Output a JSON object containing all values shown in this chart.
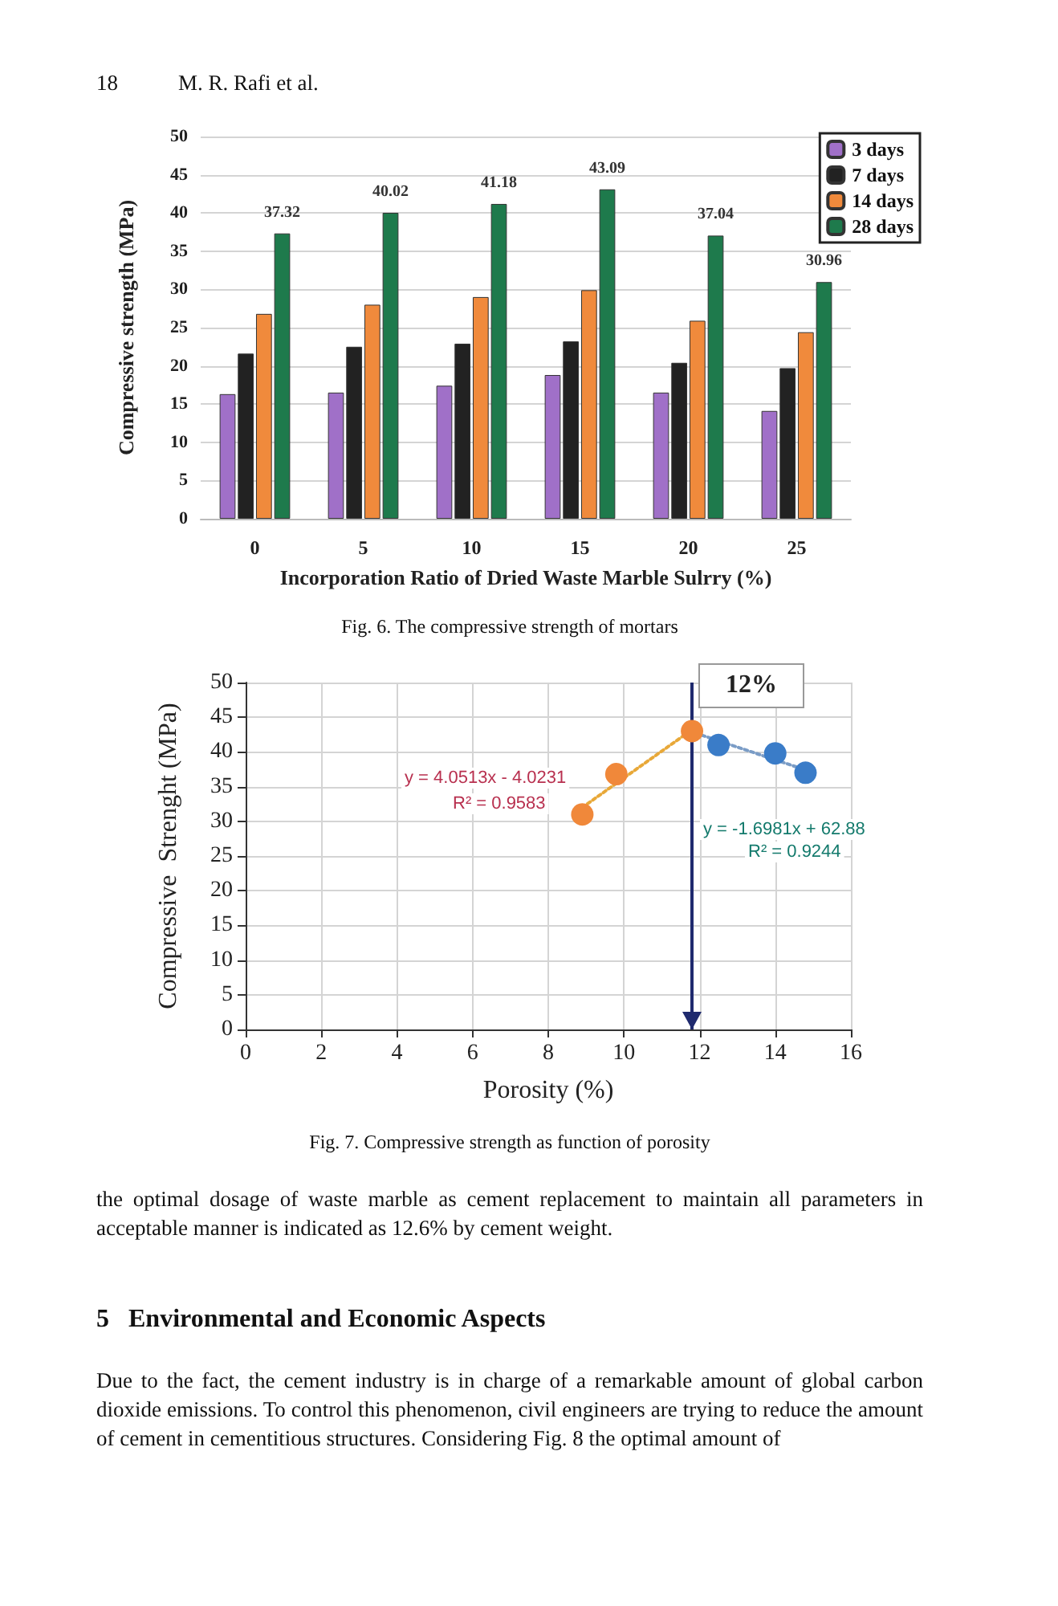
{
  "chart_data": [
    {
      "type": "bar",
      "xlabel": "Incorporation Ratio of Dried Waste Marble Sulrry (%)",
      "ylabel": "Compressive strength (MPa)",
      "categories": [
        "0",
        "5",
        "10",
        "15",
        "20",
        "25"
      ],
      "series": [
        {
          "name": "3 days",
          "color": "#a070c8",
          "values": [
            16.3,
            16.5,
            17.4,
            18.8,
            16.5,
            14.1
          ]
        },
        {
          "name": "7 days",
          "color": "#222222",
          "values": [
            21.6,
            22.5,
            22.9,
            23.2,
            20.4,
            19.7
          ]
        },
        {
          "name": "14 days",
          "color": "#f08a3c",
          "values": [
            26.8,
            28.0,
            29.0,
            29.9,
            25.9,
            24.4
          ]
        },
        {
          "name": "28 days",
          "color": "#1e7a4c",
          "values": [
            37.32,
            40.02,
            41.18,
            43.09,
            37.04,
            30.96
          ],
          "value_labels": [
            "37.32",
            "40.02",
            "41.18",
            "43.09",
            "37.04",
            "30.96"
          ]
        }
      ],
      "ylim": [
        0,
        50
      ],
      "yticks": [
        0,
        5,
        10,
        15,
        20,
        25,
        30,
        35,
        40,
        45,
        50
      ],
      "grid": "y",
      "legend": "top right",
      "annotations": [
        "18",
        "M. R. Rafi et al.",
        "Fig. 6. The compressive strength of mortars"
      ]
    },
    {
      "type": "scatter",
      "xlabel": "Porosity (%)",
      "ylabel": "Compressive  Strenght (MPa)",
      "marker": "circle",
      "series": [
        {
          "color": "#f0883a",
          "x": [
            8.9,
            9.8,
            11.8
          ],
          "values": [
            31,
            36.8,
            43
          ]
        },
        {
          "color": "#3a7cc8",
          "x": [
            12.5,
            14,
            14.8
          ],
          "values": [
            41,
            39.8,
            37
          ]
        },
        {
          "type": "line",
          "color": "#e8a838",
          "x": [
            8.9,
            11.8
          ],
          "values": [
            32,
            43.2
          ],
          "marker": "none",
          "line_style": "dotted"
        },
        {
          "type": "line",
          "color": "#7a9cc6",
          "x": [
            11.9,
            14.8
          ],
          "values": [
            42.7,
            37.4
          ],
          "marker": "none",
          "line_style": "dotted"
        }
      ],
      "xlim": [
        0,
        16
      ],
      "xticks": [
        0,
        2,
        4,
        6,
        8,
        10,
        12,
        14,
        16
      ],
      "ylim": [
        0,
        50
      ],
      "yticks": [
        0,
        5,
        10,
        15,
        20,
        25,
        30,
        35,
        40,
        45,
        50
      ],
      "grid": true,
      "legend": false,
      "ref_lines": [
        {
          "axis": "x",
          "value": 11.8,
          "label": "12%",
          "color": "#1f2a6e"
        }
      ],
      "annotations": [
        "y = 4.0513x - 4.0231",
        "R² = 0.9583",
        "y = -1.6981x + 62.88",
        "R² = 0.9244",
        "Fig. 7. Compressive strength as function of porosity",
        "the optimal dosage of waste marble as cement replacement to maintain all parameters in acceptable manner is indicated as 12.6% by cement weight.",
        "5   Environmental and Economic Aspects",
        "Due to the fact, the cement industry is in charge of a remarkable amount of global carbon dioxide emissions. To control this phenomenon, civil engineers are trying to reduce the amount of cement in cementitious structures. Considering Fig. 8 the optimal amount of"
      ]
    }
  ]
}
